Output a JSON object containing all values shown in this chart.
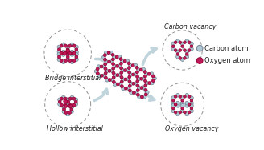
{
  "bg_color": "#ffffff",
  "carbon_color": "#b0c8d4",
  "carbon_edge": "#708090",
  "oxygen_color": "#c01858",
  "oxygen_edge": "#900030",
  "bond_color": "#b8ccd8",
  "arrow_color": "#c0d4dc",
  "dash_color": "#909090",
  "labels": {
    "bridge": "Bridge interstitial",
    "hollow": "Hollow interstitial",
    "carbon_vac": "Carbon vacancy",
    "oxygen_vac": "Oxygen vacancy",
    "legend_carbon": "Carbon atom",
    "legend_oxygen": "Oxygen atom"
  },
  "label_fontsize": 5.8,
  "legend_fontsize": 6.0
}
